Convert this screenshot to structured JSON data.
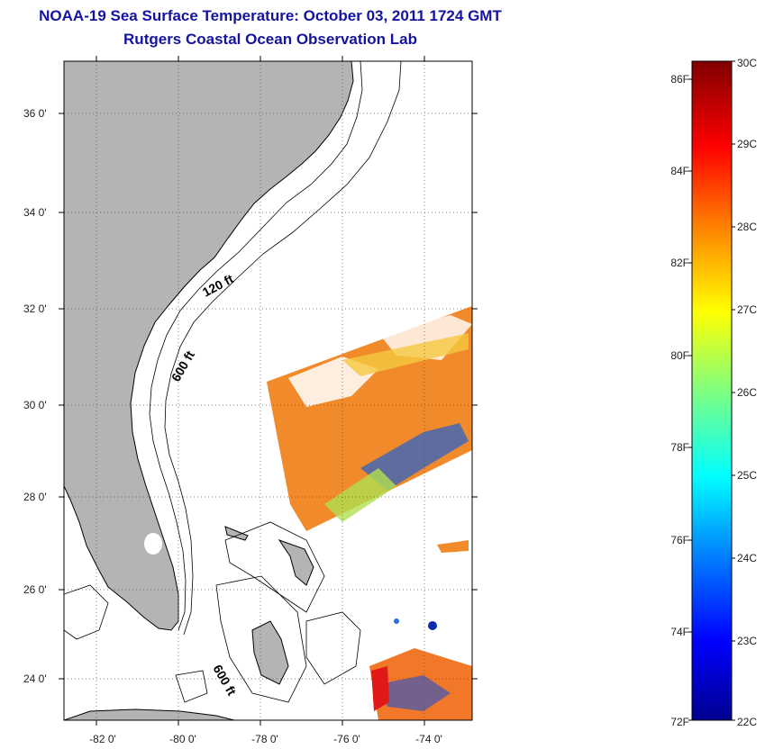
{
  "header": {
    "title": "NOAA-19 Sea Surface Temperature:  October 03, 2011 1724 GMT",
    "subtitle": "Rutgers Coastal Ocean Observation Lab"
  },
  "map": {
    "lon_range": [
      -83,
      -73
    ],
    "lat_range": [
      23,
      37
    ],
    "lon_ticks": [
      "-82 0'",
      "-80 0'",
      "-78 0'",
      "-76 0'",
      "-74 0'"
    ],
    "lat_ticks": [
      "36 0'",
      "34 0'",
      "32 0'",
      "30 0'",
      "28 0'",
      "26 0'",
      "24 0'"
    ],
    "contour_labels": [
      "120 ft",
      "600 ft",
      "600 ft"
    ],
    "land_color": "#b4b4b4"
  },
  "colorbar": {
    "celsius_range": [
      22,
      30
    ],
    "celsius_ticks": [
      "30C",
      "29C",
      "28C",
      "27C",
      "26C",
      "25C",
      "24C",
      "23C",
      "22C"
    ],
    "fahrenheit_ticks": [
      "86F",
      "84F",
      "82F",
      "80F",
      "78F",
      "76F",
      "74F",
      "72F"
    ],
    "palette": [
      "#00008f",
      "#0000ff",
      "#0080ff",
      "#00ffff",
      "#80ff80",
      "#ffff00",
      "#ff8000",
      "#ff0000",
      "#800000"
    ]
  }
}
